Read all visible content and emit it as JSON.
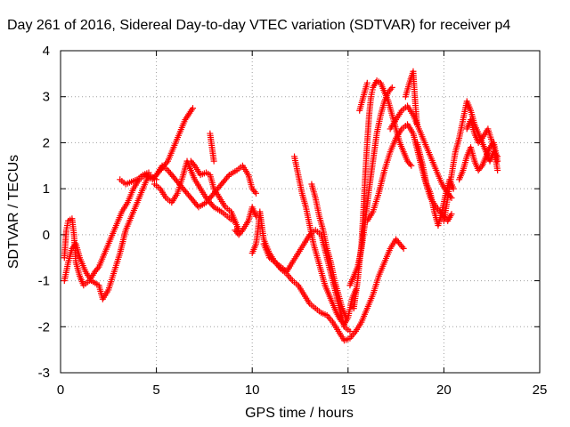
{
  "chart_data": {
    "type": "scatter",
    "title": "Day 261 of 2016, Sidereal Day-to-day VTEC variation (SDTVAR) for receiver p4",
    "xlabel": "GPS time / hours",
    "ylabel": "SDTVAR / TECUs",
    "xlim": [
      0,
      25
    ],
    "ylim": [
      -3,
      4
    ],
    "xticks": [
      "0",
      "5",
      "10",
      "15",
      "20",
      "25"
    ],
    "yticks": [
      "-3",
      "-2",
      "-1",
      "0",
      "1",
      "2",
      "3",
      "4"
    ],
    "grid": true,
    "marker": "+",
    "color": "#ff0000",
    "series": [
      {
        "points": [
          [
            0.2,
            -0.5
          ],
          [
            0.3,
            0.1
          ],
          [
            0.4,
            0.3
          ],
          [
            0.6,
            0.35
          ],
          [
            0.7,
            0.0
          ],
          [
            0.8,
            -0.6
          ],
          [
            1.0,
            -0.9
          ],
          [
            1.2,
            -1.1
          ],
          [
            1.5,
            -1.0
          ],
          [
            1.8,
            -0.8
          ],
          [
            2.0,
            -0.7
          ],
          [
            2.3,
            -0.4
          ],
          [
            2.6,
            -0.1
          ],
          [
            2.9,
            0.2
          ],
          [
            3.2,
            0.5
          ],
          [
            3.5,
            0.7
          ],
          [
            3.8,
            1.0
          ],
          [
            4.1,
            1.2
          ],
          [
            4.4,
            1.3
          ],
          [
            4.8,
            1.2
          ],
          [
            5.2,
            1.4
          ],
          [
            5.6,
            1.6
          ],
          [
            5.9,
            1.9
          ],
          [
            6.2,
            2.2
          ],
          [
            6.5,
            2.5
          ],
          [
            6.9,
            2.75
          ]
        ]
      },
      {
        "points": [
          [
            0.2,
            -1.0
          ],
          [
            0.4,
            -0.6
          ],
          [
            0.6,
            -0.3
          ],
          [
            0.8,
            -0.2
          ],
          [
            1.0,
            -0.5
          ],
          [
            1.3,
            -0.8
          ],
          [
            1.6,
            -1.0
          ],
          [
            2.0,
            -1.1
          ],
          [
            2.2,
            -1.4
          ],
          [
            2.5,
            -1.2
          ],
          [
            2.8,
            -0.8
          ],
          [
            3.1,
            -0.4
          ],
          [
            3.4,
            0.1
          ],
          [
            3.7,
            0.4
          ],
          [
            4.0,
            0.7
          ],
          [
            4.3,
            1.0
          ],
          [
            4.6,
            1.3
          ],
          [
            5.0,
            1.2
          ]
        ]
      },
      {
        "points": [
          [
            3.1,
            1.2
          ],
          [
            3.4,
            1.1
          ],
          [
            3.7,
            1.15
          ],
          [
            4.0,
            1.2
          ],
          [
            4.3,
            1.3
          ],
          [
            4.6,
            1.35
          ]
        ]
      },
      {
        "points": [
          [
            4.9,
            1.1
          ],
          [
            5.2,
            1.0
          ],
          [
            5.5,
            0.8
          ],
          [
            5.8,
            0.7
          ],
          [
            6.1,
            0.9
          ],
          [
            6.4,
            1.3
          ],
          [
            6.6,
            1.6
          ],
          [
            6.8,
            1.4
          ],
          [
            7.0,
            1.2
          ],
          [
            7.3,
            1.0
          ],
          [
            7.6,
            0.8
          ],
          [
            8.0,
            0.6
          ],
          [
            8.4,
            0.5
          ],
          [
            8.7,
            0.4
          ],
          [
            9.0,
            0.3
          ]
        ]
      },
      {
        "points": [
          [
            5.0,
            1.3
          ],
          [
            5.3,
            1.5
          ],
          [
            5.6,
            1.4
          ],
          [
            6.0,
            1.2
          ],
          [
            6.4,
            1.0
          ],
          [
            6.8,
            0.8
          ],
          [
            7.2,
            0.6
          ],
          [
            7.6,
            0.7
          ],
          [
            8.0,
            0.9
          ],
          [
            8.4,
            1.1
          ],
          [
            8.8,
            1.3
          ],
          [
            9.2,
            1.4
          ],
          [
            9.5,
            1.5
          ],
          [
            9.8,
            1.3
          ],
          [
            10.0,
            1.0
          ],
          [
            10.2,
            0.9
          ]
        ]
      },
      {
        "points": [
          [
            6.8,
            1.6
          ],
          [
            7.0,
            1.5
          ],
          [
            7.3,
            1.3
          ],
          [
            7.6,
            1.35
          ],
          [
            7.8,
            1.3
          ],
          [
            8.0,
            1.0
          ],
          [
            8.3,
            0.8
          ],
          [
            8.6,
            0.6
          ],
          [
            8.9,
            0.5
          ],
          [
            9.1,
            0.3
          ],
          [
            9.3,
            0.1
          ]
        ]
      },
      {
        "points": [
          [
            7.8,
            2.2
          ],
          [
            7.9,
            1.9
          ],
          [
            8.0,
            1.6
          ]
        ]
      },
      {
        "points": [
          [
            9.1,
            0.1
          ],
          [
            9.3,
            0.0
          ],
          [
            9.5,
            0.1
          ],
          [
            9.8,
            0.3
          ],
          [
            10.0,
            0.6
          ],
          [
            10.2,
            0.4
          ]
        ]
      },
      {
        "points": [
          [
            10.0,
            -0.4
          ],
          [
            10.2,
            -0.2
          ],
          [
            10.3,
            0.1
          ],
          [
            10.4,
            0.5
          ],
          [
            10.6,
            -0.1
          ],
          [
            10.9,
            -0.4
          ],
          [
            11.2,
            -0.6
          ],
          [
            11.5,
            -0.7
          ],
          [
            11.8,
            -0.8
          ],
          [
            12.1,
            -0.6
          ],
          [
            12.4,
            -0.4
          ],
          [
            12.7,
            -0.2
          ],
          [
            13.0,
            0.0
          ],
          [
            13.3,
            0.1
          ],
          [
            13.6,
            0.0
          ],
          [
            13.9,
            -0.5
          ],
          [
            14.2,
            -1.0
          ],
          [
            14.5,
            -1.5
          ],
          [
            14.8,
            -2.0
          ],
          [
            15.1,
            -2.1
          ]
        ]
      },
      {
        "points": [
          [
            10.6,
            -0.2
          ],
          [
            10.9,
            -0.5
          ],
          [
            11.2,
            -0.6
          ],
          [
            11.5,
            -0.75
          ],
          [
            11.8,
            -0.85
          ],
          [
            12.1,
            -1.0
          ],
          [
            12.4,
            -1.1
          ],
          [
            12.7,
            -1.3
          ],
          [
            13.0,
            -1.5
          ],
          [
            13.3,
            -1.6
          ],
          [
            13.6,
            -1.7
          ],
          [
            13.9,
            -1.75
          ],
          [
            14.2,
            -1.9
          ],
          [
            14.5,
            -2.1
          ],
          [
            14.8,
            -2.3
          ],
          [
            15.1,
            -2.25
          ],
          [
            15.4,
            -2.1
          ],
          [
            15.7,
            -1.9
          ],
          [
            16.0,
            -1.6
          ],
          [
            16.3,
            -1.3
          ],
          [
            16.6,
            -0.9
          ],
          [
            16.9,
            -0.6
          ],
          [
            17.2,
            -0.3
          ],
          [
            17.5,
            -0.1
          ],
          [
            17.9,
            -0.3
          ]
        ]
      },
      {
        "points": [
          [
            12.2,
            1.7
          ],
          [
            12.4,
            1.3
          ],
          [
            12.6,
            0.9
          ],
          [
            12.8,
            0.6
          ],
          [
            13.0,
            0.2
          ],
          [
            13.2,
            -0.2
          ],
          [
            13.4,
            -0.5
          ],
          [
            13.6,
            -0.8
          ],
          [
            13.8,
            -1.1
          ],
          [
            14.0,
            -1.3
          ],
          [
            14.2,
            -1.5
          ],
          [
            14.4,
            -1.7
          ],
          [
            14.6,
            -1.85
          ],
          [
            14.8,
            -1.95
          ],
          [
            15.0,
            -1.8
          ],
          [
            15.2,
            -1.4
          ],
          [
            15.4,
            -1.2
          ]
        ]
      },
      {
        "points": [
          [
            13.1,
            1.1
          ],
          [
            13.3,
            0.8
          ],
          [
            13.5,
            0.4
          ],
          [
            13.7,
            0.1
          ],
          [
            13.9,
            -0.3
          ],
          [
            14.1,
            -0.6
          ],
          [
            14.3,
            -1.0
          ],
          [
            14.5,
            -1.3
          ],
          [
            14.7,
            -1.6
          ],
          [
            14.9,
            -1.8
          ]
        ]
      },
      {
        "points": [
          [
            15.1,
            -1.1
          ],
          [
            15.3,
            -0.9
          ],
          [
            15.5,
            -0.7
          ],
          [
            15.7,
            -0.3
          ],
          [
            15.9,
            0.3
          ],
          [
            16.1,
            1.0
          ],
          [
            16.3,
            1.6
          ],
          [
            16.5,
            2.2
          ],
          [
            16.7,
            2.6
          ],
          [
            16.9,
            2.9
          ],
          [
            17.1,
            3.1
          ],
          [
            17.3,
            3.2
          ]
        ]
      },
      {
        "points": [
          [
            15.3,
            -1.6
          ],
          [
            15.5,
            -1.0
          ],
          [
            15.7,
            -0.2
          ],
          [
            15.8,
            0.5
          ],
          [
            15.9,
            1.3
          ],
          [
            16.0,
            2.0
          ],
          [
            16.1,
            2.6
          ],
          [
            16.2,
            3.0
          ],
          [
            16.3,
            3.2
          ],
          [
            16.5,
            3.35
          ],
          [
            16.7,
            3.3
          ],
          [
            16.9,
            3.1
          ],
          [
            17.1,
            2.9
          ],
          [
            17.3,
            2.6
          ],
          [
            17.5,
            2.3
          ],
          [
            17.7,
            2.0
          ],
          [
            17.9,
            1.8
          ],
          [
            18.1,
            1.6
          ],
          [
            18.3,
            1.5
          ]
        ]
      },
      {
        "points": [
          [
            15.6,
            2.7
          ],
          [
            15.8,
            3.0
          ],
          [
            16.0,
            3.3
          ]
        ]
      },
      {
        "points": [
          [
            16.0,
            0.3
          ],
          [
            16.3,
            0.5
          ],
          [
            16.6,
            0.9
          ],
          [
            16.9,
            1.4
          ],
          [
            17.2,
            1.8
          ],
          [
            17.5,
            2.1
          ],
          [
            17.8,
            2.3
          ],
          [
            18.1,
            2.4
          ],
          [
            18.4,
            2.2
          ],
          [
            18.7,
            1.7
          ],
          [
            19.0,
            1.2
          ],
          [
            19.3,
            0.8
          ],
          [
            19.6,
            0.6
          ],
          [
            19.9,
            0.45
          ],
          [
            20.2,
            0.3
          ],
          [
            20.4,
            0.45
          ]
        ]
      },
      {
        "points": [
          [
            17.2,
            2.3
          ],
          [
            17.5,
            2.5
          ],
          [
            17.8,
            2.7
          ],
          [
            18.1,
            2.8
          ],
          [
            18.4,
            2.6
          ],
          [
            18.7,
            2.3
          ],
          [
            19.0,
            2.0
          ],
          [
            19.3,
            1.7
          ],
          [
            19.6,
            1.4
          ],
          [
            19.9,
            1.1
          ],
          [
            20.2,
            0.9
          ],
          [
            20.4,
            0.8
          ]
        ]
      },
      {
        "points": [
          [
            18.0,
            3.0
          ],
          [
            18.2,
            3.3
          ],
          [
            18.4,
            3.55
          ],
          [
            18.5,
            2.9
          ],
          [
            18.6,
            2.4
          ]
        ]
      },
      {
        "points": [
          [
            18.6,
            2.0
          ],
          [
            18.9,
            1.5
          ],
          [
            19.1,
            1.1
          ],
          [
            19.3,
            0.9
          ],
          [
            19.5,
            0.5
          ],
          [
            19.7,
            0.2
          ],
          [
            19.9,
            0.5
          ],
          [
            20.1,
            0.9
          ],
          [
            20.3,
            1.2
          ],
          [
            20.5,
            1.0
          ]
        ]
      },
      {
        "points": [
          [
            20.0,
            0.3
          ],
          [
            20.2,
            0.8
          ],
          [
            20.4,
            1.3
          ],
          [
            20.6,
            1.8
          ],
          [
            20.8,
            2.1
          ],
          [
            21.0,
            2.5
          ],
          [
            21.2,
            2.9
          ],
          [
            21.4,
            2.7
          ],
          [
            21.6,
            2.4
          ],
          [
            21.8,
            2.2
          ],
          [
            22.0,
            2.0
          ],
          [
            22.2,
            1.8
          ],
          [
            22.4,
            1.6
          ],
          [
            22.6,
            1.8
          ],
          [
            22.8,
            1.7
          ]
        ]
      },
      {
        "points": [
          [
            20.8,
            1.2
          ],
          [
            21.0,
            1.4
          ],
          [
            21.2,
            1.7
          ],
          [
            21.4,
            1.9
          ],
          [
            21.6,
            1.6
          ],
          [
            21.8,
            1.4
          ],
          [
            22.0,
            1.5
          ],
          [
            22.2,
            1.7
          ],
          [
            22.4,
            1.9
          ],
          [
            22.6,
            2.0
          ],
          [
            22.8,
            1.6
          ]
        ]
      },
      {
        "points": [
          [
            21.2,
            2.3
          ],
          [
            21.4,
            2.5
          ],
          [
            21.6,
            2.2
          ],
          [
            21.8,
            2.0
          ],
          [
            22.0,
            2.1
          ],
          [
            22.3,
            2.3
          ],
          [
            22.6,
            1.9
          ],
          [
            22.8,
            1.4
          ]
        ]
      }
    ]
  }
}
